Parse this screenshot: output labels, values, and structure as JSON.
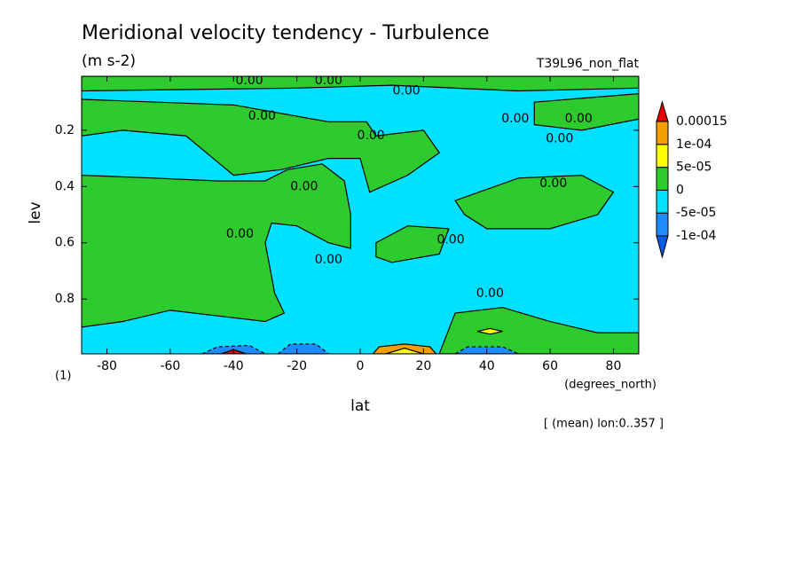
{
  "chart_data": {
    "type": "contour",
    "title": "Meridional velocity tendency - Turbulence",
    "subtitle": "(m s-2)",
    "run_label": "T39L96_non_flat",
    "xlabel": "lat",
    "ylabel": "lev",
    "x_units": "(degrees_north)",
    "y_units": "(1)",
    "note": "[ (mean) lon:0..357 ]",
    "xlim": [
      -88,
      88
    ],
    "ylim": [
      0.995,
      0.008
    ],
    "xticks": [
      -80,
      -60,
      -40,
      -20,
      0,
      20,
      40,
      60,
      80
    ],
    "yticks": [
      0.2,
      0.4,
      0.6,
      0.8
    ],
    "levels": [
      {
        "value": -0.0001,
        "label": "-1e-04"
      },
      {
        "value": -5e-05,
        "label": "-5e-05"
      },
      0,
      {
        "value": 5e-05,
        "label": "5e-05"
      },
      {
        "value": 0.0001,
        "label": "1e-04"
      },
      0.00015
    ],
    "colors": [
      "#0a5ae6",
      "#1e8cff",
      "#00e1ff",
      "#2dcb2d",
      "#ffff00",
      "#f5a000",
      "#e60000"
    ],
    "background_level": -5e-05,
    "regions": [
      {
        "level": 0,
        "points": [
          [
            -88,
            0.008
          ],
          [
            88,
            0.008
          ],
          [
            88,
            0.05
          ],
          [
            50,
            0.06
          ],
          [
            10,
            0.04
          ],
          [
            -20,
            0.05
          ],
          [
            -88,
            0.06
          ]
        ]
      },
      {
        "level": 0,
        "points": [
          [
            -88,
            0.09
          ],
          [
            -40,
            0.11
          ],
          [
            -10,
            0.17
          ],
          [
            2,
            0.17
          ],
          [
            5,
            0.22
          ],
          [
            20,
            0.2
          ],
          [
            25,
            0.28
          ],
          [
            15,
            0.36
          ],
          [
            3,
            0.42
          ],
          [
            0,
            0.3
          ],
          [
            -10,
            0.3
          ],
          [
            -25,
            0.34
          ],
          [
            -40,
            0.36
          ],
          [
            -55,
            0.22
          ],
          [
            -75,
            0.2
          ],
          [
            -88,
            0.22
          ]
        ]
      },
      {
        "level": 0,
        "points": [
          [
            -88,
            0.36
          ],
          [
            -65,
            0.37
          ],
          [
            -45,
            0.38
          ],
          [
            -30,
            0.38
          ],
          [
            -23,
            0.34
          ],
          [
            -12,
            0.32
          ],
          [
            -5,
            0.38
          ],
          [
            -3,
            0.5
          ],
          [
            -3,
            0.62
          ],
          [
            -10,
            0.6
          ],
          [
            -20,
            0.54
          ],
          [
            -28,
            0.53
          ],
          [
            -30,
            0.6
          ],
          [
            -27,
            0.78
          ],
          [
            -24,
            0.85
          ],
          [
            -30,
            0.88
          ],
          [
            -45,
            0.86
          ],
          [
            -60,
            0.84
          ],
          [
            -75,
            0.88
          ],
          [
            -88,
            0.9
          ]
        ]
      },
      {
        "level": 0,
        "points": [
          [
            30,
            0.45
          ],
          [
            50,
            0.37
          ],
          [
            70,
            0.36
          ],
          [
            80,
            0.42
          ],
          [
            75,
            0.5
          ],
          [
            60,
            0.55
          ],
          [
            40,
            0.55
          ],
          [
            33,
            0.5
          ]
        ]
      },
      {
        "level": 0,
        "points": [
          [
            5,
            0.6
          ],
          [
            15,
            0.54
          ],
          [
            28,
            0.55
          ],
          [
            25,
            0.64
          ],
          [
            10,
            0.67
          ],
          [
            5,
            0.65
          ]
        ]
      },
      {
        "level": 0,
        "points": [
          [
            55,
            0.1
          ],
          [
            88,
            0.07
          ],
          [
            88,
            0.16
          ],
          [
            70,
            0.2
          ],
          [
            55,
            0.18
          ]
        ]
      },
      {
        "level": 0,
        "points": [
          [
            25,
            0.995
          ],
          [
            30,
            0.85
          ],
          [
            45,
            0.83
          ],
          [
            60,
            0.88
          ],
          [
            75,
            0.92
          ],
          [
            88,
            0.92
          ],
          [
            88,
            0.995
          ]
        ]
      },
      {
        "level": -0.0001,
        "points": [
          [
            -50,
            0.995
          ],
          [
            -45,
            0.97
          ],
          [
            -35,
            0.965
          ],
          [
            -30,
            0.995
          ]
        ]
      },
      {
        "level": 0.00015,
        "points": [
          [
            -44,
            0.995
          ],
          [
            -40,
            0.98
          ],
          [
            -36,
            0.995
          ]
        ]
      },
      {
        "level": -0.0001,
        "points": [
          [
            -26,
            0.995
          ],
          [
            -22,
            0.96
          ],
          [
            -14,
            0.96
          ],
          [
            -10,
            0.995
          ]
        ]
      },
      {
        "level": 0.0001,
        "points": [
          [
            4,
            0.995
          ],
          [
            6,
            0.97
          ],
          [
            14,
            0.96
          ],
          [
            22,
            0.97
          ],
          [
            24,
            0.995
          ]
        ]
      },
      {
        "level": 5e-05,
        "points": [
          [
            8,
            0.995
          ],
          [
            14,
            0.975
          ],
          [
            20,
            0.995
          ]
        ]
      },
      {
        "level": -0.0001,
        "points": [
          [
            30,
            0.995
          ],
          [
            34,
            0.97
          ],
          [
            45,
            0.97
          ],
          [
            50,
            0.995
          ]
        ]
      },
      {
        "level": 5e-05,
        "points": [
          [
            37,
            0.915
          ],
          [
            41,
            0.905
          ],
          [
            45,
            0.915
          ],
          [
            41,
            0.925
          ]
        ]
      }
    ],
    "contour_labels": [
      {
        "text": "0.00",
        "lat": -35,
        "lev": 0.008
      },
      {
        "text": "0.00",
        "lat": -10,
        "lev": 0.008
      },
      {
        "text": "0.00",
        "lat": -31,
        "lev": 0.15
      },
      {
        "text": "0.00",
        "lat": 14.6,
        "lev": 0.06
      },
      {
        "text": "0.00",
        "lat": 3.4,
        "lev": 0.22
      },
      {
        "text": "0.00",
        "lat": -17.7,
        "lev": 0.4
      },
      {
        "text": "0.00",
        "lat": -38,
        "lev": 0.57
      },
      {
        "text": "0.00",
        "lat": -10,
        "lev": 0.66
      },
      {
        "text": "0.00",
        "lat": 28.6,
        "lev": 0.59
      },
      {
        "text": "0.00",
        "lat": 41,
        "lev": 0.78
      },
      {
        "text": "0.00",
        "lat": 49,
        "lev": 0.16
      },
      {
        "text": "0.00",
        "lat": 69,
        "lev": 0.16
      },
      {
        "text": "0.00",
        "lat": 63,
        "lev": 0.23
      },
      {
        "text": "0.00",
        "lat": 61,
        "lev": 0.39
      }
    ]
  }
}
